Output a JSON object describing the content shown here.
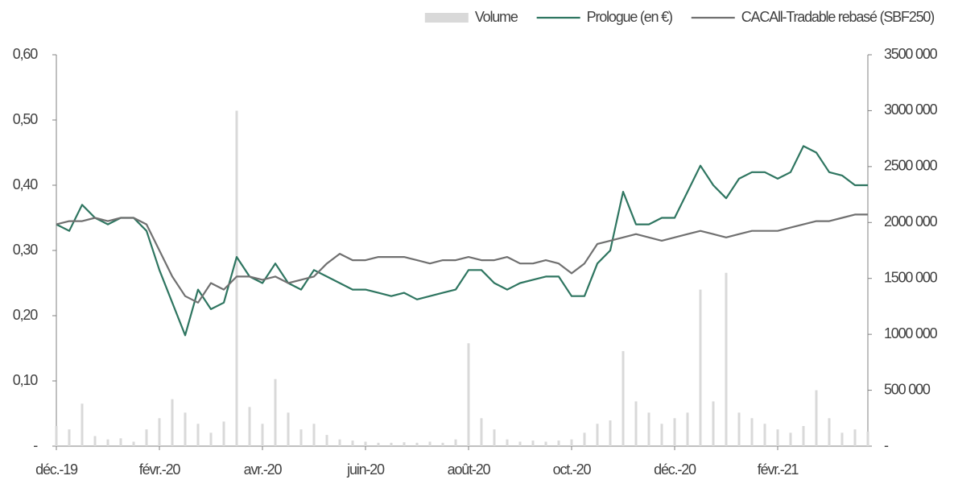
{
  "chart_data": {
    "type": "line",
    "categories": [
      "déc.-19",
      null,
      null,
      null,
      null,
      null,
      null,
      null,
      "févr.-20",
      null,
      null,
      null,
      null,
      null,
      null,
      null,
      "avr.-20",
      null,
      null,
      null,
      null,
      null,
      null,
      null,
      "juin-20",
      null,
      null,
      null,
      null,
      null,
      null,
      null,
      "août-20",
      null,
      null,
      null,
      null,
      null,
      null,
      null,
      "oct.-20",
      null,
      null,
      null,
      null,
      null,
      null,
      null,
      "déc.-20",
      null,
      null,
      null,
      null,
      null,
      null,
      null,
      "févr.-21",
      null,
      null,
      null,
      null,
      null,
      null,
      null
    ],
    "series": [
      {
        "name": "Volume",
        "type": "bar",
        "axis": "y2",
        "color": "#d9d9d9",
        "values": [
          180000,
          150000,
          380000,
          90000,
          60000,
          70000,
          40000,
          150000,
          250000,
          420000,
          300000,
          200000,
          120000,
          220000,
          3000000,
          350000,
          200000,
          600000,
          300000,
          150000,
          200000,
          100000,
          60000,
          50000,
          40000,
          30000,
          30000,
          35000,
          30000,
          40000,
          30000,
          60000,
          920000,
          250000,
          150000,
          60000,
          40000,
          50000,
          40000,
          50000,
          60000,
          120000,
          200000,
          230000,
          850000,
          400000,
          300000,
          200000,
          250000,
          300000,
          1400000,
          400000,
          1550000,
          300000,
          250000,
          200000,
          150000,
          120000,
          180000,
          500000,
          250000,
          120000,
          150000,
          130000
        ]
      },
      {
        "name": "Prologue (en €)",
        "type": "line",
        "color": "#2e7560",
        "values": [
          0.34,
          0.33,
          0.37,
          0.35,
          0.34,
          0.35,
          0.35,
          0.33,
          0.27,
          0.22,
          0.17,
          0.24,
          0.21,
          0.22,
          0.29,
          0.26,
          0.25,
          0.28,
          0.25,
          0.24,
          0.27,
          0.26,
          0.25,
          0.24,
          0.24,
          0.235,
          0.23,
          0.235,
          0.225,
          0.23,
          0.235,
          0.24,
          0.27,
          0.27,
          0.25,
          0.24,
          0.25,
          0.255,
          0.26,
          0.26,
          0.23,
          0.23,
          0.28,
          0.3,
          0.39,
          0.34,
          0.34,
          0.35,
          0.35,
          0.39,
          0.43,
          0.4,
          0.38,
          0.41,
          0.42,
          0.42,
          0.41,
          0.42,
          0.46,
          0.45,
          0.42,
          0.415,
          0.4,
          0.4
        ]
      },
      {
        "name": "CACAll-Tradable rebasé (SBF250)",
        "type": "line",
        "color": "#707070",
        "values": [
          0.34,
          0.345,
          0.345,
          0.35,
          0.345,
          0.35,
          0.35,
          0.34,
          0.3,
          0.26,
          0.23,
          0.22,
          0.25,
          0.24,
          0.26,
          0.26,
          0.255,
          0.26,
          0.25,
          0.255,
          0.26,
          0.28,
          0.295,
          0.285,
          0.285,
          0.29,
          0.29,
          0.29,
          0.285,
          0.28,
          0.285,
          0.285,
          0.29,
          0.285,
          0.285,
          0.29,
          0.28,
          0.28,
          0.285,
          0.28,
          0.265,
          0.28,
          0.31,
          0.315,
          0.32,
          0.325,
          0.32,
          0.315,
          0.32,
          0.325,
          0.33,
          0.325,
          0.32,
          0.325,
          0.33,
          0.33,
          0.33,
          0.335,
          0.34,
          0.345,
          0.345,
          0.35,
          0.355,
          0.355
        ]
      }
    ],
    "ylim": [
      0,
      0.6
    ],
    "yticks": [
      {
        "value": 0,
        "label": "-"
      },
      {
        "value": 0.1,
        "label": "0,10"
      },
      {
        "value": 0.2,
        "label": "0,20"
      },
      {
        "value": 0.3,
        "label": "0,30"
      },
      {
        "value": 0.4,
        "label": "0,40"
      },
      {
        "value": 0.5,
        "label": "0,50"
      },
      {
        "value": 0.6,
        "label": "0,60"
      }
    ],
    "y2lim": [
      0,
      3500000
    ],
    "y2ticks": [
      {
        "value": 0,
        "label": "-"
      },
      {
        "value": 500000,
        "label": "500 000"
      },
      {
        "value": 1000000,
        "label": "1000 000"
      },
      {
        "value": 1500000,
        "label": "1500 000"
      },
      {
        "value": 2000000,
        "label": "2000 000"
      },
      {
        "value": 2500000,
        "label": "2500 000"
      },
      {
        "value": 3000000,
        "label": "3000 000"
      },
      {
        "value": 3500000,
        "label": "3500 000"
      }
    ],
    "legend": "top-right",
    "grid": false
  }
}
